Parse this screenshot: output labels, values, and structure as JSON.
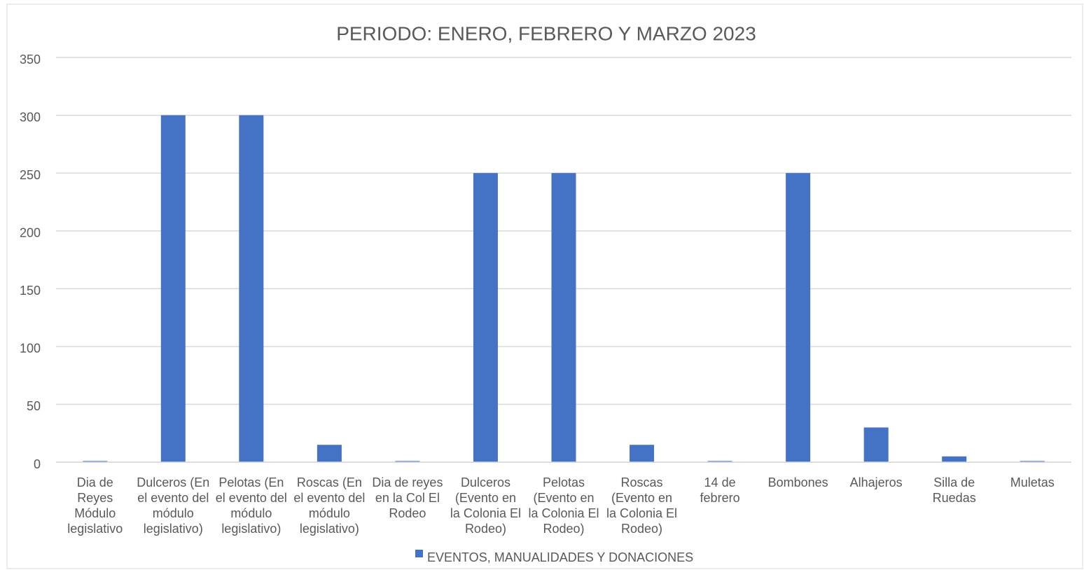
{
  "chart_data": {
    "type": "bar",
    "title": "PERIODO: ENERO, FEBRERO Y MARZO 2023",
    "categories": [
      "Dia de Reyes Módulo legislativo",
      "Dulceros (En el evento del módulo legislativo)",
      "Pelotas (En el evento del módulo legislativo)",
      "Roscas (En el evento del módulo legislativo)",
      "Dia de reyes en la Col El Rodeo",
      "Dulceros (Evento en la Colonia El Rodeo)",
      "Pelotas (Evento en la Colonia El Rodeo)",
      "Roscas (Evento en la Colonia El Rodeo)",
      "14 de febrero",
      "Bombones",
      "Alhajeros",
      "Silla de Ruedas",
      "Muletas"
    ],
    "series": [
      {
        "name": "EVENTOS, MANUALIDADES Y DONACIONES",
        "color": "#4472c4",
        "values": [
          1,
          300,
          300,
          15,
          1,
          250,
          250,
          15,
          1,
          250,
          30,
          5,
          1
        ]
      }
    ],
    "ylim": [
      0,
      350
    ],
    "yticks": [
      0,
      50,
      100,
      150,
      200,
      250,
      300,
      350
    ],
    "grid": true,
    "legend": "bottom"
  }
}
